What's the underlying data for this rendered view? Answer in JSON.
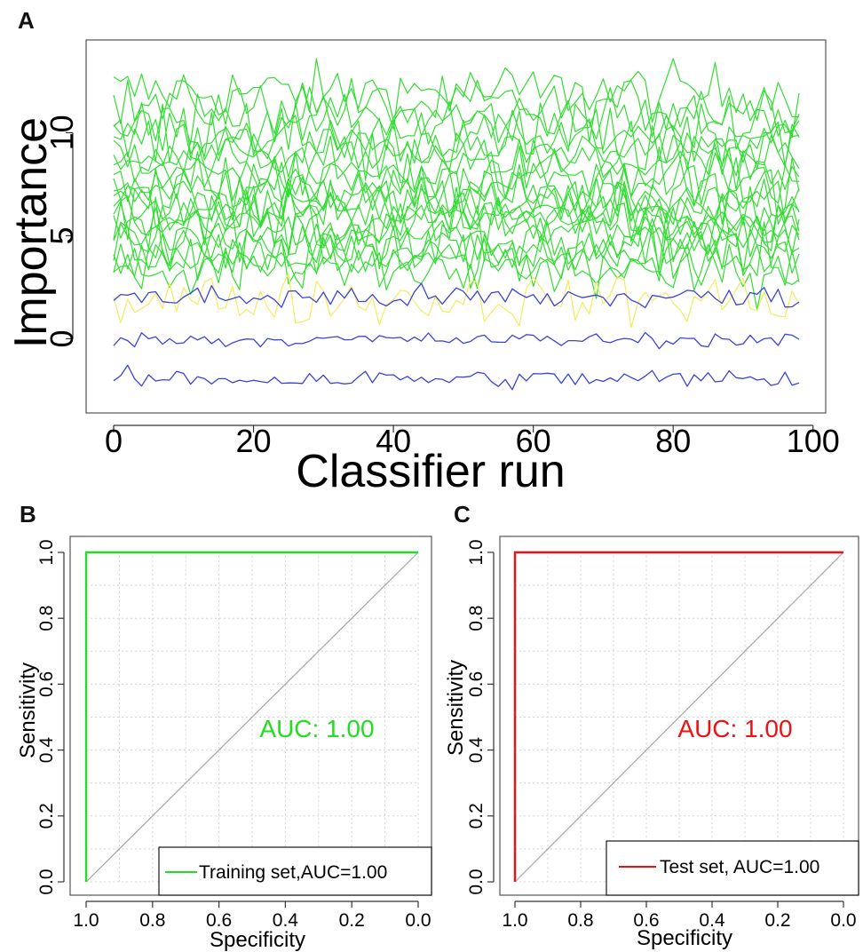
{
  "colors": {
    "confirmed": "#33dd33",
    "tentative": "#f4ec5c",
    "shadow": "#3a44d6",
    "train_roc": "#22dd22",
    "test_roc": "#ee1111",
    "grid": "#d4d4d4",
    "diagonal": "#a6a6a6"
  },
  "chart_data": [
    {
      "panel_label": "A",
      "type": "line",
      "title": "",
      "xlabel": "Classifier run",
      "ylabel": "Importance",
      "xlim": [
        0,
        98
      ],
      "ylim": [
        -3.6,
        14.5
      ],
      "xticks": [
        0,
        20,
        40,
        60,
        80,
        100
      ],
      "xtick_labels": [
        "0",
        "20",
        "40",
        "60",
        "80",
        "100"
      ],
      "yticks": [
        0,
        5,
        10
      ],
      "ytick_labels": [
        "0",
        "5",
        "10"
      ],
      "grid": false,
      "legend": "none",
      "series_groups": [
        {
          "group": "confirmed",
          "color_key": "confirmed",
          "means": [
            12.0,
            11.3,
            10.7,
            10.1,
            9.6,
            9.1,
            8.6,
            8.1,
            7.7,
            7.3,
            6.9,
            6.6,
            6.2,
            5.9,
            5.6,
            5.3,
            4.9,
            4.5,
            4.1,
            3.7,
            3.3
          ],
          "spread": 1.0
        },
        {
          "group": "tentative",
          "color_key": "tentative",
          "means": [
            1.9
          ],
          "spread": 0.9
        },
        {
          "group": "shadow",
          "color_key": "shadow",
          "means": [
            2.0,
            -0.05,
            -1.95
          ],
          "spread": [
            0.45,
            0.25,
            0.35
          ]
        }
      ]
    },
    {
      "panel_label": "B",
      "type": "line",
      "title": "",
      "xlabel": "Specificity",
      "ylabel": "Sensitivity",
      "xlim": [
        1.0,
        0.0
      ],
      "ylim": [
        0.0,
        1.0
      ],
      "ticks": [
        1.0,
        0.8,
        0.6,
        0.4,
        0.2,
        0.0
      ],
      "xtick_labels": [
        "1.0",
        "0.8",
        "0.6",
        "0.4",
        "0.2",
        "0.0"
      ],
      "ytick_labels": [
        "0.0",
        "0.2",
        "0.4",
        "0.6",
        "0.8",
        "1.0"
      ],
      "grid": true,
      "series": [
        {
          "name": "Training set,AUC=1.00",
          "color_key": "train_roc",
          "specificity": [
            1.0,
            1.0,
            0.0
          ],
          "sensitivity": [
            0.0,
            1.0,
            1.0
          ]
        }
      ],
      "annotation": "AUC: 1.00",
      "legend_label": "Training set,AUC=1.00",
      "legend_position": "bottom-right"
    },
    {
      "panel_label": "C",
      "type": "line",
      "title": "",
      "xlabel": "Specificity",
      "ylabel": "Sensitivity",
      "xlim": [
        1.0,
        0.0
      ],
      "ylim": [
        0.0,
        1.0
      ],
      "ticks": [
        1.0,
        0.8,
        0.6,
        0.4,
        0.2,
        0.0
      ],
      "xtick_labels": [
        "1.0",
        "0.8",
        "0.6",
        "0.4",
        "0.2",
        "0.0"
      ],
      "ytick_labels": [
        "0.0",
        "0.2",
        "0.4",
        "0.6",
        "0.8",
        "1.0"
      ],
      "grid": true,
      "series": [
        {
          "name": "Test set, AUC=1.00",
          "color_key": "test_roc",
          "specificity": [
            1.0,
            1.0,
            0.0
          ],
          "sensitivity": [
            0.0,
            1.0,
            1.0
          ]
        }
      ],
      "annotation": "AUC: 1.00",
      "legend_label": "Test set, AUC=1.00",
      "legend_position": "bottom-right"
    }
  ]
}
